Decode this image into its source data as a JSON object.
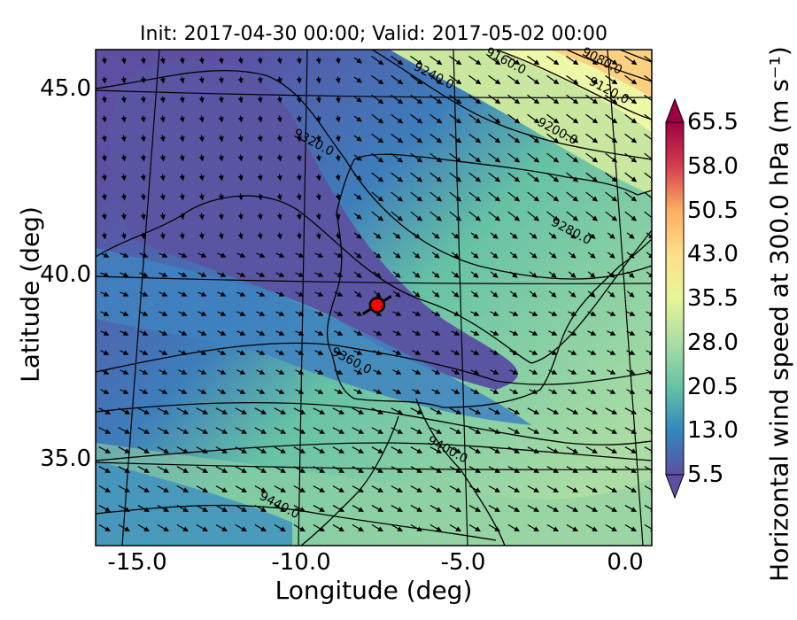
{
  "chart_data": {
    "type": "heatmap",
    "title": "Init: 2017-04-30 00:00; Valid: 2017-05-02 00:00",
    "xlabel": "Longitude (deg)",
    "ylabel": "Latitude (deg)",
    "xlim": [
      -15.9,
      0.3
    ],
    "ylim": [
      32.8,
      46.2
    ],
    "xticks": [
      "-15.0",
      "-10.0",
      "-5.0",
      "0.0"
    ],
    "xtick_values": [
      -15.0,
      -10.0,
      -5.0,
      0.0
    ],
    "yticks": [
      "35.0",
      "40.0",
      "45.0"
    ],
    "ytick_values": [
      35.0,
      40.0,
      45.0
    ],
    "colorbar": {
      "label": "Horizontal wind speed at 300.0 hPa (m s⁻¹)",
      "ticks": [
        "5.5",
        "13.0",
        "20.5",
        "28.0",
        "35.5",
        "43.0",
        "50.5",
        "58.0",
        "65.5"
      ],
      "range": [
        5.5,
        65.5
      ],
      "extend": "both",
      "colormap": "Spectral_r"
    },
    "contour_labels": [
      {
        "text": "9080.0",
        "lon": -1.2,
        "lat": 45.8
      },
      {
        "text": "9120.0",
        "lon": -1.0,
        "lat": 45.0
      },
      {
        "text": "9160.0",
        "lon": -4.0,
        "lat": 45.8
      },
      {
        "text": "9200.0",
        "lon": -2.5,
        "lat": 43.9
      },
      {
        "text": "9240.0",
        "lon": -6.1,
        "lat": 45.4
      },
      {
        "text": "9280.0",
        "lon": -2.1,
        "lat": 41.2
      },
      {
        "text": "9320.0",
        "lon": -9.6,
        "lat": 43.6
      },
      {
        "text": "9360.0",
        "lon": -8.5,
        "lat": 37.7
      },
      {
        "text": "9400.0",
        "lon": -5.7,
        "lat": 35.3
      },
      {
        "text": "9440.0",
        "lon": -10.6,
        "lat": 33.8
      }
    ],
    "marker": {
      "lon": -7.7,
      "lat": 39.3,
      "color": "#ff0000"
    }
  }
}
